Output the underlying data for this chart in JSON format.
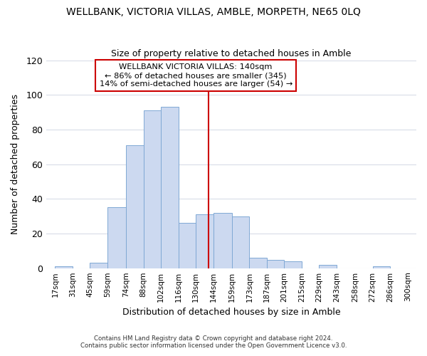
{
  "title": "WELLBANK, VICTORIA VILLAS, AMBLE, MORPETH, NE65 0LQ",
  "subtitle": "Size of property relative to detached houses in Amble",
  "xlabel": "Distribution of detached houses by size in Amble",
  "ylabel": "Number of detached properties",
  "bar_left_edges": [
    17,
    31,
    45,
    59,
    74,
    88,
    102,
    116,
    130,
    144,
    159,
    173,
    187,
    201,
    215,
    229,
    243,
    258,
    272,
    286
  ],
  "bar_widths": [
    14,
    14,
    14,
    15,
    14,
    14,
    14,
    14,
    14,
    15,
    14,
    14,
    14,
    14,
    14,
    14,
    15,
    14,
    14,
    14
  ],
  "bar_heights": [
    1,
    0,
    3,
    35,
    71,
    91,
    93,
    26,
    31,
    32,
    30,
    6,
    5,
    4,
    0,
    2,
    0,
    0,
    1,
    0
  ],
  "tick_labels": [
    "17sqm",
    "31sqm",
    "45sqm",
    "59sqm",
    "74sqm",
    "88sqm",
    "102sqm",
    "116sqm",
    "130sqm",
    "144sqm",
    "159sqm",
    "173sqm",
    "187sqm",
    "201sqm",
    "215sqm",
    "229sqm",
    "243sqm",
    "258sqm",
    "272sqm",
    "286sqm",
    "300sqm"
  ],
  "tick_positions": [
    17,
    31,
    45,
    59,
    74,
    88,
    102,
    116,
    130,
    144,
    159,
    173,
    187,
    201,
    215,
    229,
    243,
    258,
    272,
    286,
    300
  ],
  "vline_x": 140,
  "vline_color": "#cc0000",
  "bar_facecolor": "#ccd9f0",
  "bar_edgecolor": "#7fa8d4",
  "ylim": [
    0,
    120
  ],
  "xlim": [
    10,
    307
  ],
  "annotation_title": "WELLBANK VICTORIA VILLAS: 140sqm",
  "annotation_line1": "← 86% of detached houses are smaller (345)",
  "annotation_line2": "14% of semi-detached houses are larger (54) →",
  "annotation_box_color": "#cc0000",
  "background_color": "#ffffff",
  "grid_color": "#d8dce8",
  "footer1": "Contains HM Land Registry data © Crown copyright and database right 2024.",
  "footer2": "Contains public sector information licensed under the Open Government Licence v3.0."
}
